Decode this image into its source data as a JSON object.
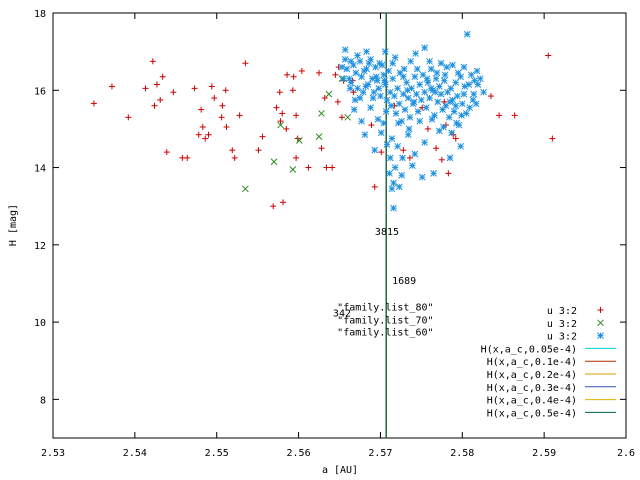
{
  "chart_data": {
    "type": "scatter",
    "title": "",
    "xlabel": "a [AU]",
    "ylabel": "H [mag]",
    "xlim": [
      2.53,
      2.6
    ],
    "ylim": [
      7,
      18
    ],
    "x_ticks": [
      2.53,
      2.54,
      2.55,
      2.56,
      2.57,
      2.58,
      2.59,
      2.6
    ],
    "x_tick_labels": [
      "2.53",
      "2.54",
      "2.55",
      "2.56",
      "2.57",
      "2.58",
      "2.59",
      "2.6"
    ],
    "y_ticks": [
      8,
      10,
      12,
      14,
      16,
      18
    ],
    "y_tick_labels": [
      "8",
      "10",
      "12",
      "14",
      "16",
      "18"
    ],
    "legend_position": "bottom-right",
    "legend": [
      {
        "label": "u 3:2",
        "marker": "plus",
        "color": "#cc0000"
      },
      {
        "label": "u 3:2",
        "marker": "cross",
        "color": "#2e8b22"
      },
      {
        "label": "u 3:2",
        "marker": "star",
        "color": "#1e90e0"
      },
      {
        "label": "H(x,a_c,0.05e-4)",
        "color": "#00d0d8"
      },
      {
        "label": "H(x,a_c,0.1e-4)",
        "color": "#b23000"
      },
      {
        "label": "H(x,a_c,0.2e-4)",
        "color": "#d0a000"
      },
      {
        "label": "H(x,a_c,0.3e-4)",
        "color": "#3050c0"
      },
      {
        "label": "H(x,a_c,0.4e-4)",
        "color": "#e0b000"
      },
      {
        "label": "H(x,a_c,0.5e-4)",
        "color": "#006040"
      }
    ],
    "curves": {
      "a_center": 2.5707,
      "C_values": [
        5e-06,
        1e-05,
        2e-05,
        3e-05,
        4e-05,
        5e-05
      ]
    },
    "annotations": [
      {
        "text": "3815",
        "x": 2.5708,
        "y": 12.25
      },
      {
        "text": "1689",
        "x": 2.5729,
        "y": 10.98
      },
      {
        "text": "\"family.list_80\"",
        "x": 2.5706,
        "y": 10.3
      },
      {
        "text": "\"family.list_70\"",
        "x": 2.5706,
        "y": 9.97
      },
      {
        "text": "\"family.list_60\"",
        "x": 2.5706,
        "y": 9.65
      },
      {
        "text": "342",
        "x": 2.5653,
        "y": 10.14
      }
    ],
    "series": [
      {
        "marker": "plus",
        "color": "#cc0000",
        "points": [
          [
            2.535,
            15.66
          ],
          [
            2.5372,
            16.1
          ],
          [
            2.5392,
            15.3
          ],
          [
            2.5413,
            16.05
          ],
          [
            2.5422,
            16.75
          ],
          [
            2.5424,
            15.6
          ],
          [
            2.5427,
            16.15
          ],
          [
            2.5431,
            15.75
          ],
          [
            2.5434,
            16.35
          ],
          [
            2.5439,
            14.4
          ],
          [
            2.5447,
            15.95
          ],
          [
            2.5458,
            14.25
          ],
          [
            2.5464,
            14.25
          ],
          [
            2.5473,
            16.05
          ],
          [
            2.5478,
            14.85
          ],
          [
            2.5481,
            15.5
          ],
          [
            2.5483,
            15.05
          ],
          [
            2.5486,
            14.75
          ],
          [
            2.549,
            14.85
          ],
          [
            2.5494,
            16.1
          ],
          [
            2.5497,
            15.8
          ],
          [
            2.5506,
            15.3
          ],
          [
            2.5507,
            15.6
          ],
          [
            2.5511,
            16.0
          ],
          [
            2.5512,
            15.05
          ],
          [
            2.5519,
            14.45
          ],
          [
            2.5522,
            14.25
          ],
          [
            2.5528,
            15.35
          ],
          [
            2.5535,
            16.7
          ],
          [
            2.5551,
            14.45
          ],
          [
            2.5556,
            14.8
          ],
          [
            2.5569,
            13.0
          ],
          [
            2.5573,
            15.55
          ],
          [
            2.5577,
            15.95
          ],
          [
            2.5578,
            15.2
          ],
          [
            2.558,
            15.4
          ],
          [
            2.5581,
            13.1
          ],
          [
            2.5585,
            15.0
          ],
          [
            2.5586,
            16.4
          ],
          [
            2.5593,
            16.0
          ],
          [
            2.5594,
            16.35
          ],
          [
            2.5597,
            14.25
          ],
          [
            2.5597,
            15.35
          ],
          [
            2.5599,
            14.75
          ],
          [
            2.5604,
            16.5
          ],
          [
            2.5612,
            14.0
          ],
          [
            2.5632,
            15.8
          ],
          [
            2.5641,
            14.0
          ],
          [
            2.5645,
            16.4
          ],
          [
            2.5648,
            15.7
          ],
          [
            2.5649,
            16.6
          ],
          [
            2.5653,
            15.3
          ],
          [
            2.5667,
            15.95
          ],
          [
            2.5689,
            15.1
          ],
          [
            2.5693,
            13.5
          ],
          [
            2.5701,
            14.4
          ],
          [
            2.5717,
            15.6
          ],
          [
            2.5728,
            14.45
          ],
          [
            2.5736,
            14.25
          ],
          [
            2.5751,
            15.55
          ],
          [
            2.5758,
            15.0
          ],
          [
            2.5768,
            14.5
          ],
          [
            2.5775,
            14.2
          ],
          [
            2.5778,
            15.7
          ],
          [
            2.578,
            15.1
          ],
          [
            2.5783,
            13.85
          ],
          [
            2.5789,
            14.85
          ],
          [
            2.5792,
            14.75
          ],
          [
            2.5835,
            15.85
          ],
          [
            2.5845,
            15.35
          ],
          [
            2.5864,
            15.35
          ],
          [
            2.5905,
            16.9
          ],
          [
            2.591,
            14.75
          ],
          [
            2.5666,
            16.25
          ],
          [
            2.5625,
            16.45
          ],
          [
            2.5628,
            14.5
          ],
          [
            2.5634,
            14.0
          ],
          [
            2.5655,
            16.25
          ]
        ]
      },
      {
        "marker": "cross",
        "color": "#2e8b22",
        "points": [
          [
            2.5535,
            13.45
          ],
          [
            2.557,
            14.15
          ],
          [
            2.5578,
            15.1
          ],
          [
            2.5593,
            13.95
          ],
          [
            2.5601,
            14.7
          ],
          [
            2.5625,
            14.8
          ],
          [
            2.5628,
            15.4
          ],
          [
            2.5637,
            15.9
          ],
          [
            2.5653,
            16.3
          ],
          [
            2.566,
            15.3
          ]
        ]
      },
      {
        "marker": "star",
        "color": "#1e90e0",
        "points": [
          [
            2.5653,
            16.6
          ],
          [
            2.5655,
            16.3
          ],
          [
            2.5657,
            16.8
          ],
          [
            2.5659,
            16.55
          ],
          [
            2.5662,
            16.3
          ],
          [
            2.5664,
            16.2
          ],
          [
            2.5667,
            16.65
          ],
          [
            2.567,
            16.45
          ],
          [
            2.5672,
            16.9
          ],
          [
            2.5675,
            16.75
          ],
          [
            2.5677,
            16.35
          ],
          [
            2.568,
            16.5
          ],
          [
            2.5683,
            16.55
          ],
          [
            2.5685,
            16.15
          ],
          [
            2.5688,
            16.8
          ],
          [
            2.569,
            16.3
          ],
          [
            2.5692,
            15.95
          ],
          [
            2.5694,
            16.6
          ],
          [
            2.5696,
            16.25
          ],
          [
            2.5698,
            16.05
          ],
          [
            2.57,
            15.85
          ],
          [
            2.5702,
            16.65
          ],
          [
            2.5704,
            16.4
          ],
          [
            2.5706,
            16.15
          ],
          [
            2.5708,
            15.75
          ],
          [
            2.571,
            16.5
          ],
          [
            2.5712,
            15.95
          ],
          [
            2.5713,
            15.6
          ],
          [
            2.5715,
            16.3
          ],
          [
            2.5717,
            15.85
          ],
          [
            2.5719,
            15.4
          ],
          [
            2.5721,
            16.05
          ],
          [
            2.5723,
            15.65
          ],
          [
            2.5724,
            16.45
          ],
          [
            2.5726,
            15.2
          ],
          [
            2.5728,
            15.9
          ],
          [
            2.573,
            15.5
          ],
          [
            2.5732,
            16.2
          ],
          [
            2.5734,
            15.8
          ],
          [
            2.5736,
            15.3
          ],
          [
            2.5738,
            16.05
          ],
          [
            2.574,
            15.65
          ],
          [
            2.5742,
            16.35
          ],
          [
            2.5744,
            15.9
          ],
          [
            2.5746,
            15.45
          ],
          [
            2.5748,
            16.15
          ],
          [
            2.575,
            15.75
          ],
          [
            2.5752,
            16.4
          ],
          [
            2.5754,
            15.95
          ],
          [
            2.5756,
            15.55
          ],
          [
            2.5758,
            16.2
          ],
          [
            2.576,
            15.8
          ],
          [
            2.5762,
            16.55
          ],
          [
            2.5764,
            16.0
          ],
          [
            2.5766,
            15.35
          ],
          [
            2.5768,
            16.3
          ],
          [
            2.577,
            15.7
          ],
          [
            2.5772,
            16.1
          ],
          [
            2.5774,
            15.9
          ],
          [
            2.5776,
            15.5
          ],
          [
            2.5778,
            16.25
          ],
          [
            2.578,
            15.6
          ],
          [
            2.5782,
            15.95
          ],
          [
            2.5784,
            15.3
          ],
          [
            2.5786,
            16.05
          ],
          [
            2.5788,
            15.75
          ],
          [
            2.579,
            15.45
          ],
          [
            2.5792,
            16.2
          ],
          [
            2.5794,
            15.85
          ],
          [
            2.5796,
            15.1
          ],
          [
            2.5798,
            16.35
          ],
          [
            2.58,
            15.65
          ],
          [
            2.5802,
            15.9
          ],
          [
            2.5805,
            15.4
          ],
          [
            2.5808,
            16.15
          ],
          [
            2.5811,
            16.4
          ],
          [
            2.5813,
            15.75
          ],
          [
            2.5815,
            16.25
          ],
          [
            2.5818,
            16.5
          ],
          [
            2.5822,
            16.3
          ],
          [
            2.5806,
            17.45
          ],
          [
            2.5754,
            17.1
          ],
          [
            2.5737,
            16.75
          ],
          [
            2.576,
            16.75
          ],
          [
            2.5774,
            16.7
          ],
          [
            2.5788,
            16.65
          ],
          [
            2.5706,
            17.0
          ],
          [
            2.5718,
            16.85
          ],
          [
            2.5743,
            16.95
          ],
          [
            2.5683,
            17.0
          ],
          [
            2.5657,
            17.05
          ],
          [
            2.5663,
            16.05
          ],
          [
            2.5679,
            15.95
          ],
          [
            2.5669,
            15.75
          ],
          [
            2.5688,
            15.55
          ],
          [
            2.5697,
            15.25
          ],
          [
            2.5701,
            14.9
          ],
          [
            2.5704,
            15.15
          ],
          [
            2.5708,
            14.6
          ],
          [
            2.5711,
            13.85
          ],
          [
            2.5712,
            14.25
          ],
          [
            2.5714,
            13.45
          ],
          [
            2.5716,
            13.6
          ],
          [
            2.5718,
            14.0
          ],
          [
            2.5721,
            14.55
          ],
          [
            2.5723,
            13.5
          ],
          [
            2.5726,
            13.8
          ],
          [
            2.5714,
            14.75
          ],
          [
            2.5734,
            14.85
          ],
          [
            2.5742,
            14.35
          ],
          [
            2.5754,
            14.65
          ],
          [
            2.5772,
            14.95
          ],
          [
            2.5787,
            14.9
          ],
          [
            2.5793,
            15.15
          ],
          [
            2.5798,
            14.55
          ],
          [
            2.5762,
            16.05
          ],
          [
            2.5729,
            16.55
          ],
          [
            2.5695,
            16.35
          ],
          [
            2.5682,
            16.1
          ],
          [
            2.5675,
            15.8
          ],
          [
            2.5672,
            16.05
          ],
          [
            2.5715,
            16.7
          ],
          [
            2.5728,
            16.35
          ],
          [
            2.5745,
            16.55
          ],
          [
            2.5757,
            16.3
          ],
          [
            2.5769,
            16.45
          ],
          [
            2.5781,
            16.6
          ],
          [
            2.5795,
            16.45
          ],
          [
            2.5803,
            16.1
          ],
          [
            2.5809,
            15.55
          ],
          [
            2.5814,
            15.9
          ],
          [
            2.5817,
            15.65
          ],
          [
            2.5699,
            16.7
          ],
          [
            2.5686,
            16.7
          ],
          [
            2.5691,
            15.8
          ],
          [
            2.5707,
            15.45
          ],
          [
            2.5722,
            15.15
          ],
          [
            2.5735,
            15.0
          ],
          [
            2.5748,
            15.2
          ],
          [
            2.5763,
            15.25
          ],
          [
            2.5777,
            15.05
          ],
          [
            2.5785,
            15.7
          ],
          [
            2.5799,
            15.35
          ],
          [
            2.5802,
            16.6
          ],
          [
            2.5826,
            15.95
          ],
          [
            2.5677,
            15.2
          ],
          [
            2.5681,
            14.85
          ],
          [
            2.5693,
            14.45
          ],
          [
            2.5727,
            14.25
          ],
          [
            2.5739,
            14.05
          ],
          [
            2.5751,
            13.75
          ],
          [
            2.5716,
            12.95
          ],
          [
            2.5765,
            13.85
          ],
          [
            2.5785,
            14.25
          ],
          [
            2.5664,
            16.75
          ],
          [
            2.5668,
            15.5
          ],
          [
            2.5705,
            16.25
          ],
          [
            2.5733,
            16.0
          ],
          [
            2.5741,
            15.7
          ],
          [
            2.5767,
            15.95
          ],
          [
            2.5779,
            16.4
          ],
          [
            2.5792,
            15.6
          ],
          [
            2.5819,
            16.15
          ]
        ]
      }
    ]
  }
}
